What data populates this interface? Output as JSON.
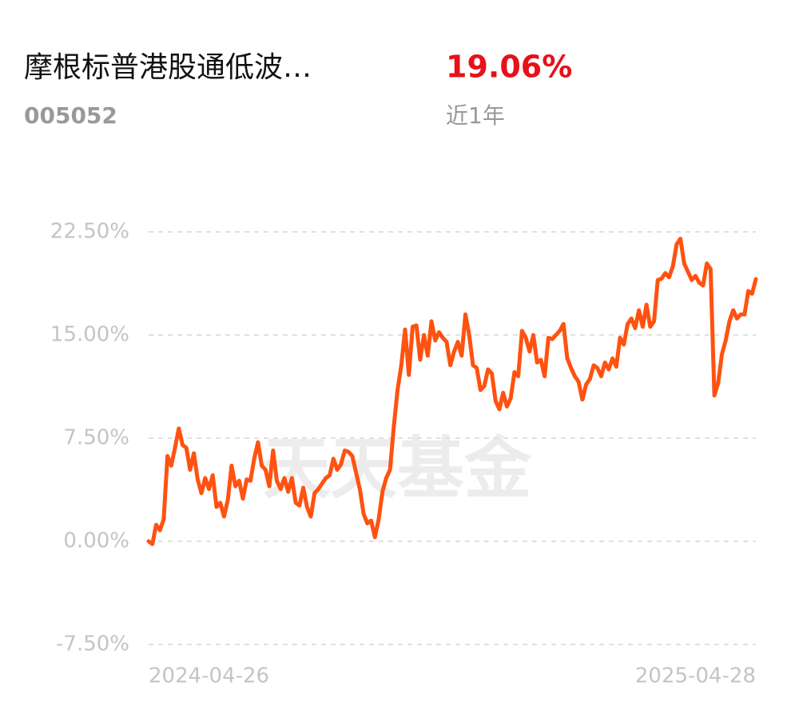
{
  "header": {
    "title": "摩根标普港股通低波…",
    "code": "005052",
    "return": "19.06%",
    "period": "近1年"
  },
  "chart_data": {
    "type": "line",
    "watermark": "天天基金",
    "color": "#ff5210",
    "grid": true,
    "categories": [
      "2024-04-26",
      null,
      null,
      null,
      null,
      null,
      null,
      null,
      null,
      null,
      null,
      null,
      null,
      null,
      null,
      null,
      null,
      null,
      null,
      null,
      null,
      null,
      null,
      null,
      null,
      null,
      null,
      null,
      null,
      null,
      null,
      null,
      null,
      null,
      null,
      null,
      null,
      null,
      null,
      null,
      null,
      null,
      null,
      null,
      null,
      null,
      null,
      null,
      null,
      null,
      null,
      null,
      null,
      null,
      null,
      null,
      null,
      null,
      null,
      null,
      null,
      null,
      null,
      null,
      null,
      null,
      null,
      null,
      null,
      null,
      null,
      null,
      null,
      null,
      null,
      null,
      null,
      null,
      null,
      null,
      null,
      null,
      null,
      null,
      null,
      null,
      null,
      null,
      null,
      null,
      null,
      null,
      null,
      null,
      null,
      null,
      null,
      null,
      null,
      null,
      null,
      null,
      null,
      null,
      null,
      null,
      null,
      null,
      null,
      null,
      null,
      null,
      null,
      null,
      null,
      null,
      null,
      null,
      null,
      null,
      null,
      null,
      null,
      null,
      null,
      null,
      null,
      null,
      null,
      null,
      null,
      null,
      null,
      null,
      null,
      null,
      null,
      null,
      null,
      null,
      null,
      null,
      null,
      null,
      null,
      null,
      null,
      null,
      null,
      null,
      null,
      null,
      null,
      null,
      null,
      null,
      null,
      null,
      null,
      null,
      null,
      "2025-04-28"
    ],
    "values": [
      0,
      -0.2,
      1.2,
      0.8,
      1.6,
      6.2,
      5.5,
      6.8,
      8.2,
      7.0,
      6.8,
      5.2,
      6.4,
      4.5,
      3.5,
      4.6,
      3.8,
      4.8,
      2.5,
      2.8,
      1.8,
      3.0,
      5.5,
      4.0,
      4.4,
      3.1,
      4.5,
      4.4,
      6.0,
      7.2,
      5.5,
      5.2,
      4.0,
      6.6,
      4.4,
      3.8,
      4.6,
      3.6,
      4.6,
      2.8,
      2.6,
      3.9,
      2.5,
      1.8,
      3.5,
      3.8,
      4.2,
      4.6,
      4.8,
      6.0,
      5.2,
      5.6,
      6.6,
      6.5,
      6.2,
      5.0,
      3.8,
      2.0,
      1.3,
      1.5,
      0.3,
      1.6,
      3.6,
      4.6,
      5.2,
      8.3,
      11.0,
      12.8,
      15.4,
      12.1,
      15.6,
      15.7,
      13.2,
      15.0,
      13.5,
      16.0,
      14.6,
      15.2,
      14.8,
      14.5,
      12.8,
      13.8,
      14.5,
      13.5,
      16.5,
      15.0,
      12.8,
      12.6,
      11.0,
      11.3,
      12.5,
      12.2,
      10.2,
      9.6,
      10.8,
      9.8,
      10.4,
      12.3,
      12.0,
      15.3,
      14.8,
      13.8,
      15.0,
      13.0,
      13.2,
      12.0,
      14.8,
      14.7,
      15.0,
      15.3,
      15.8,
      13.3,
      12.6,
      12.0,
      11.6,
      10.3,
      11.4,
      11.8,
      12.8,
      12.6,
      12.0,
      13.0,
      12.5,
      13.3,
      12.7,
      14.8,
      14.3,
      15.8,
      16.2,
      15.5,
      16.8,
      15.6,
      17.2,
      15.6,
      16.0,
      19.0,
      19.1,
      19.5,
      19.2,
      20.0,
      21.6,
      22.0,
      20.2,
      19.6,
      19.0,
      19.3,
      18.8,
      18.6,
      20.2,
      19.8,
      10.6,
      11.5,
      13.6,
      14.6,
      16.0,
      16.8,
      16.2,
      16.5,
      16.5,
      18.2,
      18.0,
      19.06
    ],
    "ylim": [
      -7.5,
      22.5
    ],
    "yticks": [
      {
        "value": -7.5,
        "label": "-7.50%"
      },
      {
        "value": 0,
        "label": "0.00%"
      },
      {
        "value": 7.5,
        "label": "7.50%"
      },
      {
        "value": 15,
        "label": "15.00%"
      },
      {
        "value": 22.5,
        "label": "22.50%"
      }
    ]
  }
}
